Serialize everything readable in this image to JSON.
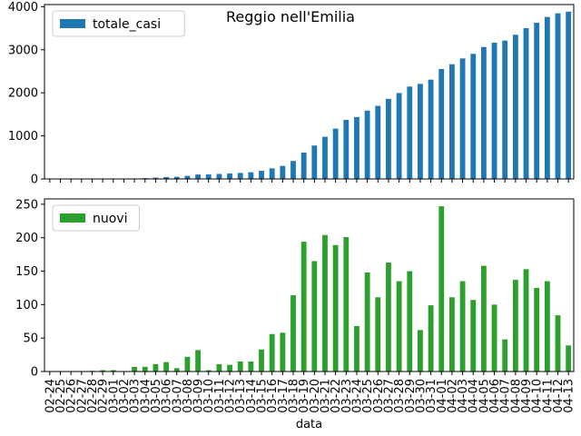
{
  "title": "Reggio nell'Emilia",
  "chart_data": [
    {
      "type": "bar",
      "xlabel": "",
      "ylabel": "",
      "ylim": [
        0,
        4050
      ],
      "yticks": [
        0,
        1000,
        2000,
        3000,
        4000
      ],
      "legend_position": "top-left",
      "series": [
        {
          "name": "totale_casi",
          "color": "#1f77b4",
          "values": [
            0,
            0,
            0,
            0,
            1,
            3,
            5,
            5,
            12,
            19,
            30,
            44,
            49,
            71,
            103,
            105,
            116,
            126,
            141,
            156,
            189,
            245,
            303,
            417,
            611,
            776,
            980,
            1169,
            1370,
            1438,
            1586,
            1697,
            1860,
            1995,
            2145,
            2207,
            2306,
            2553,
            2664,
            2799,
            2906,
            3064,
            3164,
            3212,
            3349,
            3502,
            3627,
            3762,
            3846,
            3885
          ]
        }
      ]
    },
    {
      "type": "bar",
      "xlabel": "data",
      "ylabel": "",
      "ylim": [
        0,
        258
      ],
      "yticks": [
        0,
        50,
        100,
        150,
        200,
        250
      ],
      "legend_position": "top-left",
      "categories": [
        "02-24",
        "02-25",
        "02-26",
        "02-27",
        "02-28",
        "02-29",
        "03-01",
        "03-02",
        "03-03",
        "03-04",
        "03-05",
        "03-06",
        "03-07",
        "03-08",
        "03-09",
        "03-10",
        "03-11",
        "03-12",
        "03-13",
        "03-14",
        "03-15",
        "03-16",
        "03-17",
        "03-18",
        "03-19",
        "03-20",
        "03-21",
        "03-22",
        "03-23",
        "03-24",
        "03-25",
        "03-26",
        "03-27",
        "03-28",
        "03-29",
        "03-30",
        "03-31",
        "04-01",
        "04-02",
        "04-03",
        "04-04",
        "04-05",
        "04-06",
        "04-07",
        "04-08",
        "04-09",
        "04-10",
        "04-11",
        "04-12",
        "04-13"
      ],
      "series": [
        {
          "name": "nuovi",
          "color": "#2ca02c",
          "values": [
            0,
            0,
            0,
            0,
            1,
            2,
            2,
            0,
            7,
            7,
            11,
            14,
            5,
            22,
            32,
            2,
            11,
            10,
            15,
            15,
            33,
            56,
            58,
            114,
            194,
            165,
            204,
            189,
            201,
            68,
            148,
            111,
            163,
            135,
            150,
            62,
            99,
            247,
            111,
            135,
            107,
            158,
            100,
            48,
            137,
            153,
            125,
            135,
            84,
            39
          ]
        }
      ]
    }
  ]
}
